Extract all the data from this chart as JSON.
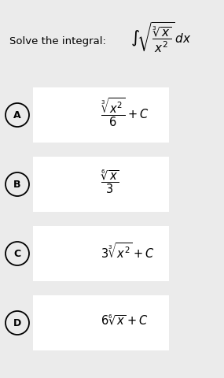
{
  "title": "Solve the integral:",
  "bg_color": "#ebebeb",
  "white": "#ffffff",
  "options": [
    {
      "label": "A"
    },
    {
      "label": "B"
    },
    {
      "label": "C"
    },
    {
      "label": "D"
    }
  ],
  "figsize": [
    2.85,
    4.81
  ],
  "dpi": 100
}
